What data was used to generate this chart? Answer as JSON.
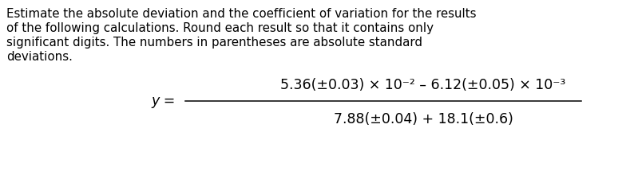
{
  "background_color": "#ffffff",
  "text_color": "#000000",
  "paragraph_lines": [
    "Estimate the absolute deviation and the coefficient of variation for the results",
    "of the following calculations. Round each result so that it contains only",
    "significant digits. The numbers in parentheses are absolute standard",
    "deviations."
  ],
  "paragraph_fontsize": 10.8,
  "y_label": "y =",
  "numerator": "5.36(±0.03) × 10⁻² – 6.12(±0.05) × 10⁻³",
  "denominator": "7.88(±0.04) + 18.1(±0.6)",
  "formula_fontsize": 12.5,
  "font_family": "DejaVu Sans",
  "fig_width": 7.94,
  "fig_height": 2.15,
  "dpi": 100
}
